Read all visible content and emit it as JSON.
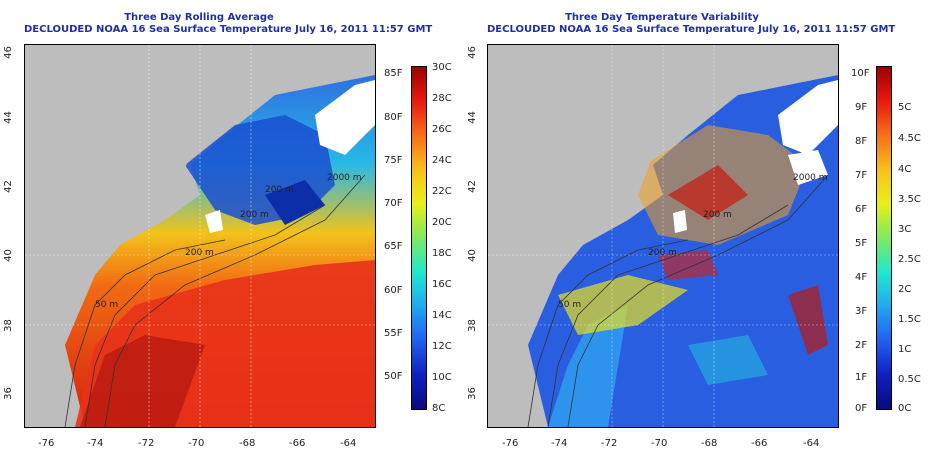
{
  "left_panel": {
    "title": "Three Day Rolling Average",
    "subtitle": "DECLOUDED NOAA 16 Sea Surface Temperature July 16, 2011 11:57 GMT",
    "lon_ticks": [
      "-76",
      "-74",
      "-72",
      "-70",
      "-68",
      "-66",
      "-64"
    ],
    "lat_ticks": [
      "46",
      "44",
      "42",
      "40",
      "38",
      "36"
    ],
    "contour_labels": [
      "2000 m",
      "200 m",
      "200 m",
      "50 m",
      "200 m"
    ],
    "colorbar_f": [
      "85F",
      "80F",
      "75F",
      "70F",
      "65F",
      "60F",
      "55F",
      "50F"
    ],
    "colorbar_c": [
      "30C",
      "28C",
      "26C",
      "24C",
      "22C",
      "20C",
      "18C",
      "16C",
      "14C",
      "12C",
      "10C",
      "8C"
    ]
  },
  "right_panel": {
    "title": "Three Day Temperature Variability",
    "subtitle": "DECLOUDED NOAA 16 Sea Surface Temperature July 16, 2011 11:57 GMT",
    "lon_ticks": [
      "-76",
      "-74",
      "-72",
      "-70",
      "-68",
      "-66",
      "-64"
    ],
    "lat_ticks": [
      "46",
      "44",
      "42",
      "40",
      "38",
      "36"
    ],
    "contour_labels": [
      "200 m",
      "200 m",
      "50 m",
      "2000 m"
    ],
    "colorbar_f": [
      "10F",
      "9F",
      "8F",
      "7F",
      "6F",
      "5F",
      "4F",
      "3F",
      "2F",
      "1F",
      "0F"
    ],
    "colorbar_c": [
      "5C",
      "4.5C",
      "4C",
      "3.5C",
      "3C",
      "2.5C",
      "2C",
      "1.5C",
      "1C",
      "0.5C",
      "0C"
    ]
  },
  "colors": {
    "title": "#1f2fa8",
    "land": "#bdbdbd",
    "cloud": "#ffffff"
  }
}
